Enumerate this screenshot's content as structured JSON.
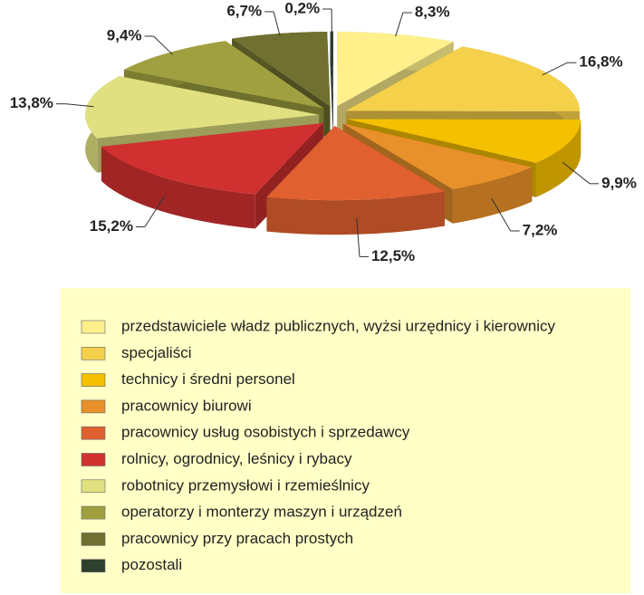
{
  "chart_data": {
    "type": "pie",
    "categories": [
      "przedstawiciele władz publicznych, wyżsi urzędnicy i kierownicy",
      "specjaliści",
      "technicy i średni personel",
      "pracownicy biurowi",
      "pracownicy usług osobistych i sprzedawcy",
      "rolnicy, ogrodnicy, leśnicy i rybacy",
      "robotnicy przemysłowi i rzemieślnicy",
      "operatorzy i monterzy maszyn i urządzeń",
      "pracownicy przy pracach prostych",
      "pozostali"
    ],
    "values": [
      8.3,
      16.8,
      9.9,
      7.2,
      12.5,
      15.2,
      13.8,
      9.4,
      6.7,
      0.2
    ],
    "value_labels": [
      "8,3%",
      "16,8%",
      "9,9%",
      "7,2%",
      "12,5%",
      "15,2%",
      "13,8%",
      "9,4%",
      "6,7%",
      "0,2%"
    ],
    "colors": [
      "#FFF08C",
      "#F5D04A",
      "#F5C000",
      "#E8902A",
      "#E06030",
      "#D03030",
      "#E0E080",
      "#A0A040",
      "#707030",
      "#304030"
    ],
    "legend": "bottom"
  }
}
